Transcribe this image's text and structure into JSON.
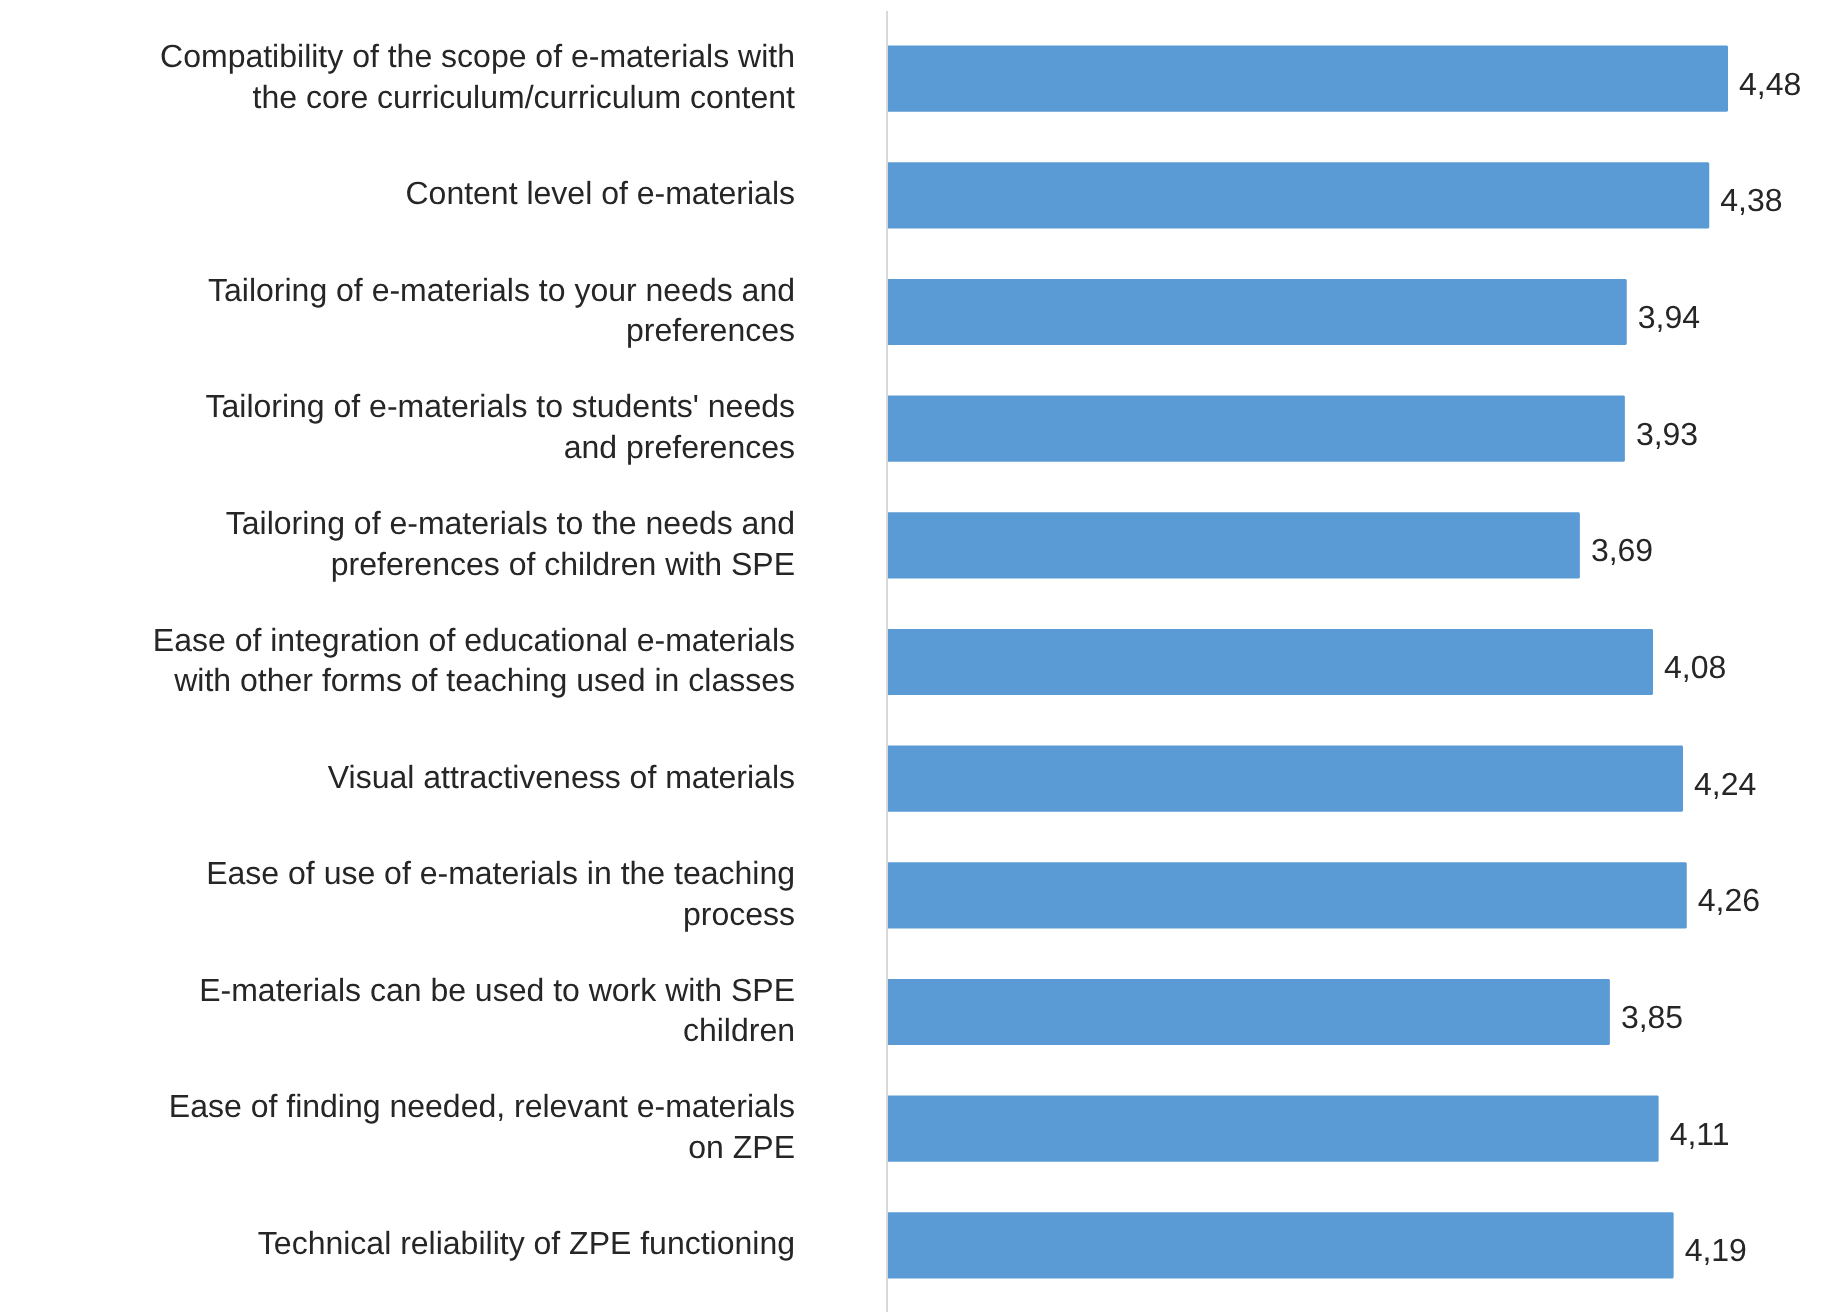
{
  "chart_data": {
    "type": "bar",
    "orientation": "horizontal",
    "categories": [
      "Compatibility of the scope of e-materials with the core curriculum/curriculum content",
      "Content level of e-materials",
      "Tailoring of e-materials to your needs and preferences",
      "Tailoring of e-materials to students' needs and preferences",
      "Tailoring of e-materials to the needs and preferences of children with SPE",
      "Ease of integration of educational e-materials with other forms of teaching used in classes",
      "Visual attractiveness of materials",
      "Ease of use of e-materials in the teaching process",
      "E-materials can be used to work with SPE children",
      "Ease of finding needed, relevant e-materials on ZPE",
      "Technical reliability of ZPE functioning"
    ],
    "values": [
      4.48,
      4.38,
      3.94,
      3.93,
      3.69,
      4.08,
      4.24,
      4.26,
      3.85,
      4.11,
      4.19
    ],
    "value_labels": [
      "4,48",
      "4,38",
      "3,94",
      "3,93",
      "3,69",
      "4,08",
      "4,24",
      "4,26",
      "3,85",
      "4,11",
      "4,19"
    ],
    "color": "#5b9bd5",
    "grid": false
  }
}
